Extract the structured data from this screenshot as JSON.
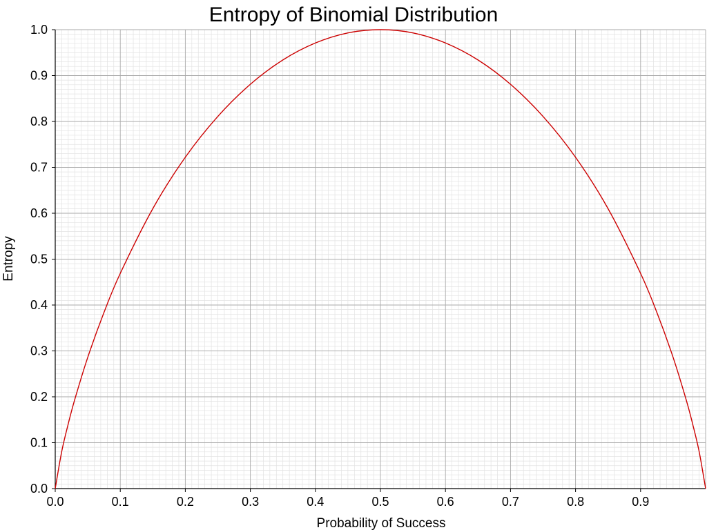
{
  "chart_data": {
    "type": "line",
    "title": "Entropy of Binomial Distribution",
    "xlabel": "Probability of Success",
    "ylabel": "Entropy",
    "xlim": [
      0,
      1
    ],
    "ylim": [
      0,
      1
    ],
    "x_ticks": [
      "0.0",
      "0.1",
      "0.2",
      "0.3",
      "0.4",
      "0.5",
      "0.6",
      "0.7",
      "0.8",
      "0.9"
    ],
    "y_ticks": [
      "0.0",
      "0.1",
      "0.2",
      "0.3",
      "0.4",
      "0.5",
      "0.6",
      "0.7",
      "0.8",
      "0.9",
      "1.0"
    ],
    "grid": true,
    "minor_grid": true,
    "series": [
      {
        "color": "#cc0000",
        "x": [
          0.0,
          0.01,
          0.02,
          0.03,
          0.05,
          0.075,
          0.1,
          0.15,
          0.2,
          0.25,
          0.3,
          0.35,
          0.4,
          0.45,
          0.5,
          0.55,
          0.6,
          0.65,
          0.7,
          0.75,
          0.8,
          0.85,
          0.9,
          0.925,
          0.95,
          0.97,
          0.98,
          0.99,
          1.0
        ],
        "y": [
          0.0,
          0.081,
          0.141,
          0.194,
          0.286,
          0.384,
          0.469,
          0.61,
          0.722,
          0.811,
          0.881,
          0.934,
          0.971,
          0.993,
          1.0,
          0.993,
          0.971,
          0.934,
          0.881,
          0.811,
          0.722,
          0.61,
          0.469,
          0.384,
          0.286,
          0.194,
          0.141,
          0.081,
          0.0
        ]
      }
    ]
  }
}
